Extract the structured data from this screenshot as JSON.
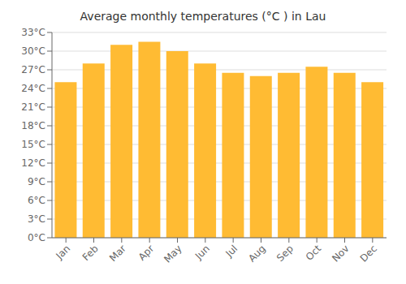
{
  "chart_data": {
    "type": "bar",
    "title": "Average monthly temperatures (°C ) in Lau",
    "categories": [
      "Jan",
      "Feb",
      "Mar",
      "Apr",
      "May",
      "Jun",
      "Jul",
      "Aug",
      "Sep",
      "Oct",
      "Nov",
      "Dec"
    ],
    "values": [
      25.0,
      28.0,
      31.0,
      31.5,
      30.0,
      28.0,
      26.5,
      26.0,
      26.5,
      27.5,
      26.5,
      25.0
    ],
    "color": "#FFBB33",
    "ylim": [
      0,
      33
    ],
    "yticks": [
      {
        "value": 0,
        "label": "0°C"
      },
      {
        "value": 3,
        "label": "3°C"
      },
      {
        "value": 6,
        "label": "6°C"
      },
      {
        "value": 9,
        "label": "9°C"
      },
      {
        "value": 12,
        "label": "12°C"
      },
      {
        "value": 15,
        "label": "15°C"
      },
      {
        "value": 18,
        "label": "18°C"
      },
      {
        "value": 21,
        "label": "21°C"
      },
      {
        "value": 24,
        "label": "24°C"
      },
      {
        "value": 27,
        "label": "27°C"
      },
      {
        "value": 30,
        "label": "30°C"
      },
      {
        "value": 33,
        "label": "33°C"
      }
    ],
    "grid": true
  }
}
